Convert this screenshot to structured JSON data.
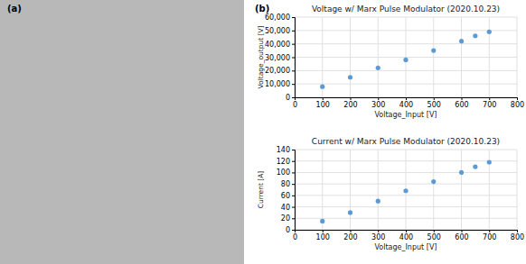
{
  "annotations": [
    "(a)",
    "(b)"
  ],
  "chart_data": [
    {
      "type": "scatter",
      "title": "Voltage w/ Marx Pulse Modulator (2020.10.23)",
      "xlabel": "Voltage_Input [V]",
      "ylabel": "Voltage_output [V]",
      "x": [
        100,
        200,
        300,
        400,
        500,
        600,
        650,
        700
      ],
      "values": [
        8000,
        15000,
        22000,
        28000,
        35000,
        42000,
        46000,
        49000
      ],
      "color": "#5b9bd5",
      "xlim": [
        0,
        800
      ],
      "ylim": [
        0,
        60000
      ],
      "xticks": [
        0,
        100,
        200,
        300,
        400,
        500,
        600,
        700,
        800
      ],
      "yticks": [
        0,
        {
          "value": 10000,
          "label": "10,000"
        },
        {
          "value": 20000,
          "label": "20,000"
        },
        {
          "value": 30000,
          "label": "30,000"
        },
        {
          "value": 40000,
          "label": "40,000"
        },
        {
          "value": 50000,
          "label": "50,000"
        },
        {
          "value": 60000,
          "label": "60,000"
        }
      ],
      "grid": true
    },
    {
      "type": "scatter",
      "title": "Current w/ Marx Pulse Modulator (2020.10.23)",
      "xlabel": "Voltage_Input [V]",
      "ylabel": "Current [A]",
      "x": [
        100,
        200,
        300,
        400,
        500,
        600,
        650,
        700
      ],
      "values": [
        15,
        30,
        50,
        68,
        84,
        100,
        110,
        118
      ],
      "color": "#5b9bd5",
      "xlim": [
        0,
        800
      ],
      "ylim": [
        0,
        140
      ],
      "xticks": [
        0,
        100,
        200,
        300,
        400,
        500,
        600,
        700,
        800
      ],
      "yticks": [
        0,
        20,
        40,
        60,
        80,
        100,
        120,
        140
      ],
      "grid": true
    }
  ]
}
